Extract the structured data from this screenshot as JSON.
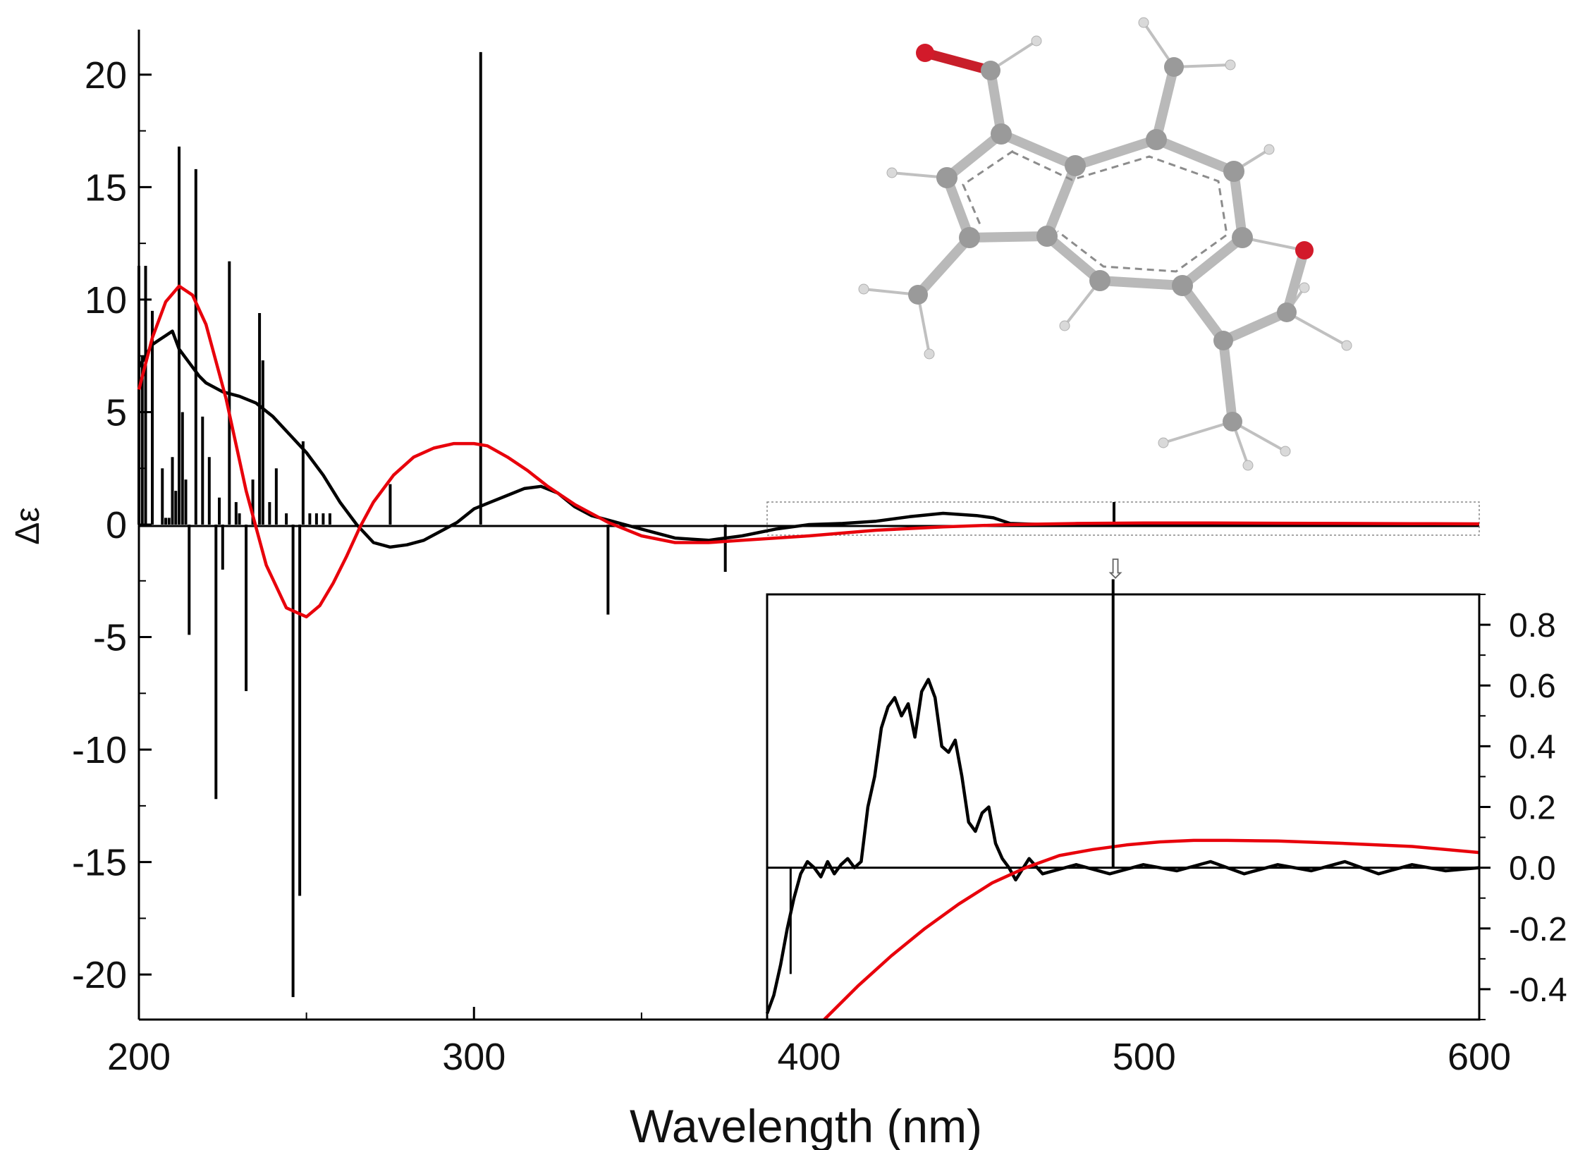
{
  "chart_data": [
    {
      "id": "main",
      "type": "line",
      "xlabel": "Wavelength (nm)",
      "ylabel": "Δε",
      "xlim": [
        200,
        600
      ],
      "ylim": [
        -22,
        22
      ],
      "xticks": [
        200,
        300,
        400,
        500,
        600
      ],
      "yticks": [
        20,
        15,
        10,
        5,
        0,
        -5,
        -10,
        -15,
        -20
      ],
      "yticklabels": [
        "20",
        "15",
        "10",
        "5",
        "0",
        "-5",
        "-10",
        "-15",
        "-20"
      ],
      "grid": false,
      "legend": "none",
      "series": [
        {
          "kind": "line",
          "color": "#000000",
          "x": [
            200,
            202,
            204,
            206,
            208,
            210,
            212,
            215,
            218,
            220,
            225,
            230,
            235,
            240,
            245,
            250,
            255,
            260,
            265,
            270,
            275,
            280,
            285,
            290,
            295,
            300,
            305,
            310,
            315,
            320,
            325,
            330,
            335,
            340,
            345,
            350,
            360,
            370,
            380,
            390,
            400,
            410,
            420,
            430,
            440,
            450,
            455,
            460,
            470,
            480,
            500,
            520,
            540,
            560,
            580,
            600
          ],
          "y": [
            7.0,
            7.5,
            8.0,
            8.2,
            8.4,
            8.6,
            7.8,
            7.2,
            6.6,
            6.3,
            5.9,
            5.7,
            5.4,
            4.8,
            4.0,
            3.2,
            2.2,
            1.0,
            0.0,
            -0.8,
            -1.0,
            -0.9,
            -0.7,
            -0.3,
            0.1,
            0.7,
            1.0,
            1.3,
            1.6,
            1.7,
            1.4,
            0.8,
            0.4,
            0.2,
            0.0,
            -0.2,
            -0.6,
            -0.7,
            -0.5,
            -0.2,
            0.0,
            0.05,
            0.15,
            0.35,
            0.5,
            0.4,
            0.3,
            0.05,
            0.0,
            0.0,
            0.0,
            0.0,
            0.0,
            0.0,
            0.0,
            0.0
          ]
        },
        {
          "kind": "line",
          "color": "#e8000b",
          "x": [
            200,
            204,
            208,
            212,
            216,
            220,
            226,
            232,
            238,
            244,
            250,
            254,
            258,
            262,
            266,
            270,
            276,
            282,
            288,
            294,
            300,
            304,
            310,
            316,
            322,
            330,
            340,
            350,
            360,
            370,
            380,
            400,
            420,
            440,
            460,
            480,
            500,
            520,
            540,
            560,
            580,
            600
          ],
          "y": [
            6.0,
            8.3,
            9.9,
            10.6,
            10.2,
            8.9,
            5.6,
            1.5,
            -1.8,
            -3.7,
            -4.1,
            -3.6,
            -2.6,
            -1.4,
            -0.1,
            1.0,
            2.2,
            3.0,
            3.4,
            3.6,
            3.6,
            3.5,
            3.0,
            2.4,
            1.7,
            0.9,
            0.1,
            -0.5,
            -0.8,
            -0.8,
            -0.7,
            -0.5,
            -0.25,
            -0.1,
            0.0,
            0.05,
            0.07,
            0.07,
            0.06,
            0.05,
            0.04,
            0.03
          ]
        }
      ],
      "sticks": {
        "kind": "stick",
        "color": "#000000",
        "x": [
          200,
          201,
          202,
          204,
          207,
          208,
          209,
          210,
          211,
          212,
          213,
          214,
          215,
          217,
          219,
          221,
          223,
          224,
          225,
          227,
          229,
          230,
          232,
          234,
          236,
          237,
          239,
          241,
          244,
          246,
          248,
          249,
          251,
          253,
          255,
          257,
          275,
          302,
          340,
          375,
          491
        ],
        "y": [
          11.5,
          7.5,
          11.5,
          9.5,
          2.5,
          0.3,
          0.3,
          3.0,
          1.5,
          16.8,
          5.0,
          2.0,
          -4.9,
          15.8,
          4.8,
          3.0,
          -12.2,
          1.2,
          -2.0,
          11.7,
          1.0,
          0.5,
          -7.4,
          2.0,
          9.4,
          7.3,
          1.0,
          2.5,
          0.5,
          -21.0,
          -16.5,
          3.7,
          0.5,
          0.5,
          0.5,
          0.5,
          1.8,
          21.0,
          -4.0,
          -2.1,
          1.0
        ]
      }
    },
    {
      "id": "inset",
      "type": "line",
      "xlim": [
        388,
        600
      ],
      "ylim": [
        -0.5,
        0.9
      ],
      "yticks": [
        0.8,
        0.6,
        0.4,
        0.2,
        0.0,
        -0.2,
        -0.4
      ],
      "yticklabels": [
        "0.8",
        "0.6",
        "0.4",
        "0.2",
        "0.0",
        "-0.2",
        "-0.4"
      ],
      "grid": false,
      "series": [
        {
          "kind": "line",
          "color": "#000000",
          "x": [
            388,
            390,
            392,
            394,
            396,
            398,
            400,
            402,
            404,
            406,
            408,
            410,
            412,
            414,
            416,
            418,
            420,
            422,
            424,
            426,
            428,
            430,
            432,
            434,
            436,
            438,
            440,
            442,
            444,
            446,
            448,
            450,
            452,
            454,
            456,
            458,
            460,
            462,
            466,
            470,
            480,
            490,
            500,
            510,
            520,
            530,
            540,
            550,
            560,
            570,
            580,
            590,
            600
          ],
          "y": [
            -0.48,
            -0.42,
            -0.32,
            -0.2,
            -0.1,
            -0.02,
            0.02,
            0.0,
            -0.03,
            0.02,
            -0.02,
            0.01,
            0.03,
            0.0,
            0.02,
            0.2,
            0.3,
            0.46,
            0.53,
            0.56,
            0.5,
            0.54,
            0.43,
            0.58,
            0.62,
            0.56,
            0.4,
            0.38,
            0.42,
            0.3,
            0.15,
            0.12,
            0.18,
            0.2,
            0.08,
            0.03,
            0.0,
            -0.04,
            0.03,
            -0.02,
            0.01,
            -0.02,
            0.01,
            -0.01,
            0.02,
            -0.02,
            0.01,
            -0.01,
            0.02,
            -0.02,
            0.01,
            -0.01,
            0.0
          ]
        },
        {
          "kind": "line",
          "color": "#e8000b",
          "x": [
            405,
            415,
            425,
            435,
            445,
            455,
            465,
            475,
            485,
            495,
            505,
            515,
            525,
            540,
            560,
            580,
            600
          ],
          "y": [
            -0.5,
            -0.39,
            -0.29,
            -0.2,
            -0.12,
            -0.05,
            0.0,
            0.04,
            0.06,
            0.075,
            0.085,
            0.09,
            0.09,
            0.088,
            0.08,
            0.07,
            0.05
          ]
        }
      ],
      "sticks": {
        "kind": "stick",
        "color": "#000000",
        "x": [
          491
        ],
        "y": [
          0.95
        ]
      }
    }
  ]
}
